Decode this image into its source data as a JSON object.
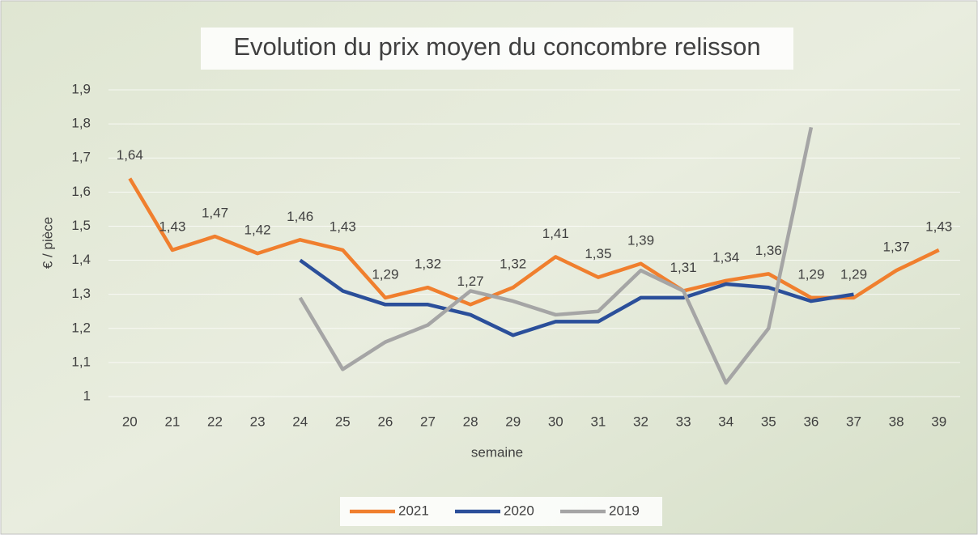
{
  "chart_data": {
    "type": "line",
    "title": "Evolution du prix moyen du concombre relisson",
    "x_label": "semaine",
    "y_label": "€ / pièce",
    "categories": [
      "20",
      "21",
      "22",
      "23",
      "24",
      "25",
      "26",
      "27",
      "28",
      "29",
      "30",
      "31",
      "32",
      "33",
      "34",
      "35",
      "36",
      "37",
      "38",
      "39"
    ],
    "series": [
      {
        "name": "2021",
        "color": "#f07f2e",
        "values": [
          1.64,
          1.43,
          1.47,
          1.42,
          1.46,
          1.43,
          1.29,
          1.32,
          1.27,
          1.32,
          1.41,
          1.35,
          1.39,
          1.31,
          1.34,
          1.36,
          1.29,
          1.29,
          1.37,
          1.43
        ],
        "value_labels": [
          "1,64",
          "1,43",
          "1,47",
          "1,42",
          "1,46",
          "1,43",
          "1,29",
          "1,32",
          "1,27",
          "1,32",
          "1,41",
          "1,35",
          "1,39",
          "1,31",
          "1,34",
          "1,36",
          "1,29",
          "1,29",
          "1,37",
          "1,43"
        ]
      },
      {
        "name": "2020",
        "color": "#2b4f9a",
        "values": [
          null,
          null,
          null,
          null,
          1.4,
          1.31,
          1.27,
          1.27,
          1.24,
          1.18,
          1.22,
          1.22,
          1.29,
          1.29,
          1.33,
          1.32,
          1.28,
          1.3,
          null,
          null
        ]
      },
      {
        "name": "2019",
        "color": "#a5a5a5",
        "values": [
          null,
          null,
          null,
          null,
          1.29,
          1.08,
          1.16,
          1.21,
          1.31,
          1.28,
          1.24,
          1.25,
          1.37,
          1.31,
          1.04,
          1.2,
          1.79,
          null,
          null,
          null
        ]
      }
    ],
    "ylim": [
      1,
      1.9
    ],
    "yticks": [
      {
        "value": 1,
        "label": "1"
      },
      {
        "value": 1.1,
        "label": "1,1"
      },
      {
        "value": 1.2,
        "label": "1,2"
      },
      {
        "value": 1.3,
        "label": "1,3"
      },
      {
        "value": 1.4,
        "label": "1,4"
      },
      {
        "value": 1.5,
        "label": "1,5"
      },
      {
        "value": 1.6,
        "label": "1,6"
      },
      {
        "value": 1.7,
        "label": "1,7"
      },
      {
        "value": 1.8,
        "label": "1,8"
      },
      {
        "value": 1.9,
        "label": "1,9"
      }
    ],
    "grid": true,
    "legend": "bottom"
  }
}
